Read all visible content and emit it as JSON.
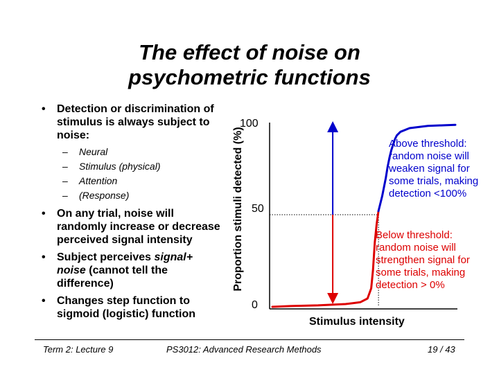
{
  "title": {
    "line1": "The effect of noise on",
    "line2": "psychometric functions"
  },
  "bullets": [
    {
      "text": "Detection or discrimination of stimulus is always subject to noise:",
      "sub": [
        "Neural",
        "Stimulus (physical)",
        "Attention",
        "(Response)"
      ]
    },
    {
      "text": "On any trial, noise will randomly increase or decrease perceived signal intensity"
    },
    {
      "pre": "Subject perceives ",
      "em": "signal+ noise",
      "post": " (cannot tell the difference)"
    },
    {
      "text": "Changes step function to sigmoid (logistic) function"
    }
  ],
  "chart_data": {
    "type": "line",
    "ylabel": "Proportion stimuli detected (%)",
    "xlabel": "Stimulus intensity",
    "y_ticks": [
      "100",
      "50",
      "0"
    ],
    "ylim": [
      0,
      100
    ],
    "xlim": [
      0,
      100
    ],
    "series": [
      {
        "color": "#dd0000",
        "x": [
          0,
          10,
          25,
          40,
          48,
          52,
          54,
          55,
          56,
          57,
          58
        ],
        "y": [
          0,
          0.4,
          0.8,
          1.5,
          2.5,
          4.5,
          10,
          20,
          35,
          45,
          52
        ]
      },
      {
        "color": "#0000cc",
        "x": [
          58,
          60,
          62,
          63,
          64,
          65,
          66,
          67,
          68,
          70,
          75,
          85,
          95,
          100
        ],
        "y": [
          52,
          60,
          70,
          76,
          81,
          85,
          88,
          91,
          93,
          95,
          97,
          98.2,
          98.6,
          98.8
        ]
      }
    ],
    "markers": [
      {
        "x": 33,
        "color": "#0000cc",
        "direction": "up"
      },
      {
        "x": 33,
        "color": "#dd0000",
        "direction": "down"
      }
    ],
    "threshold": {
      "x": 58,
      "y": 50
    },
    "annotations": {
      "above": [
        "Above threshold:",
        "random noise will",
        "weaken signal for",
        "some trials, making",
        "detection <100%"
      ],
      "below": [
        "Below threshold:",
        "random noise will",
        "strengthen signal for",
        "some trials, making",
        "detection > 0%"
      ]
    }
  },
  "footer": {
    "left": "Term 2: Lecture 9",
    "center": "PS3012: Advanced Research Methods",
    "right": "19 / 43"
  }
}
